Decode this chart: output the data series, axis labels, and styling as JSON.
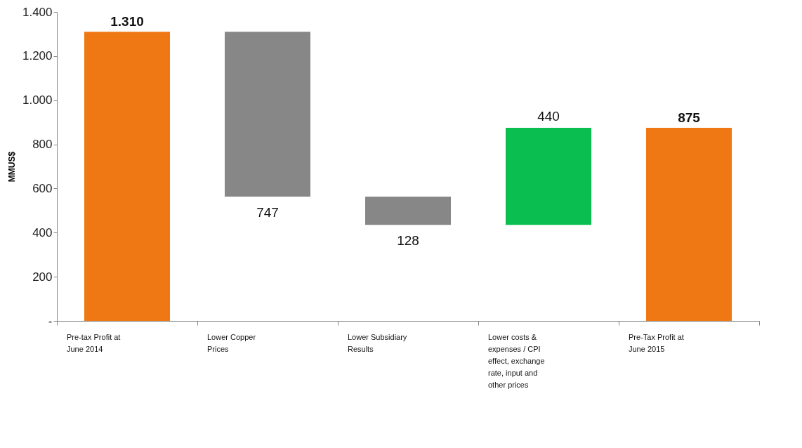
{
  "chart_data": {
    "type": "bar",
    "ylabel": "MMUS$",
    "categories": [
      "Pre-tax Profit at June 2014",
      "Lower Copper Prices",
      "Lower Subsidiary Results",
      "Lower costs & expenses / CPI effect, exchange rate, input and other prices",
      "Pre-Tax Profit at June 2015"
    ],
    "base": [
      0,
      1310,
      563,
      435,
      0
    ],
    "values": [
      1310,
      -747,
      -128,
      440,
      875
    ],
    "value_labels": [
      "1.310",
      "747",
      "128",
      "440",
      "875"
    ],
    "colors": [
      "#f07814",
      "#878787",
      "#878787",
      "#0abe50",
      "#f07814"
    ],
    "ylim": [
      0,
      1400
    ],
    "yticks": [
      {
        "value": 0,
        "label": "-"
      },
      {
        "value": 200,
        "label": "200"
      },
      {
        "value": 400,
        "label": "400"
      },
      {
        "value": 600,
        "label": "600"
      },
      {
        "value": 800,
        "label": "800"
      },
      {
        "value": 1000,
        "label": "1.000"
      },
      {
        "value": 1200,
        "label": "1.200"
      },
      {
        "value": 1400,
        "label": "1.400"
      }
    ],
    "grid": false
  }
}
